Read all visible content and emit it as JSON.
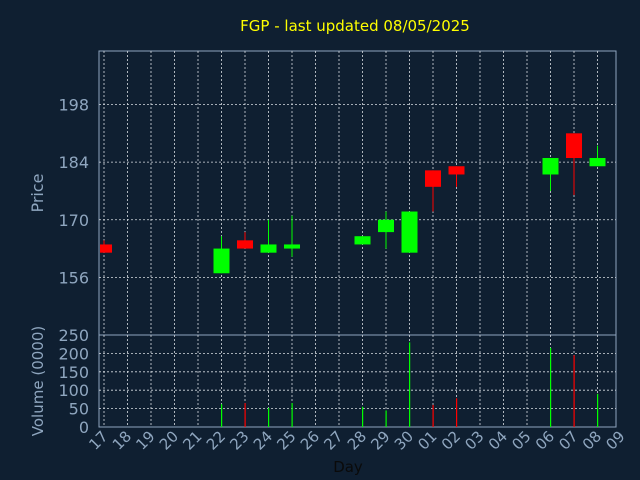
{
  "chart_data": {
    "type": "candlestick",
    "title": "FGP - last updated 08/05/2025",
    "xlabel": "Day",
    "x_ticks": [
      "17",
      "18",
      "19",
      "20",
      "21",
      "22",
      "23",
      "24",
      "25",
      "26",
      "27",
      "28",
      "29",
      "30",
      "01",
      "02",
      "03",
      "04",
      "05",
      "06",
      "07",
      "08",
      "09"
    ],
    "up_color": "#00ff00",
    "down_color": "#ff0000",
    "title_color": "#ffff00",
    "axis_label_color": "#8fa6bf",
    "price_panel": {
      "ylabel": "Price",
      "yticks": [
        156,
        170,
        184,
        198
      ],
      "ylim": [
        142,
        211
      ],
      "candles": [
        {
          "day": "17",
          "open": 164,
          "high": 165,
          "low": 162,
          "close": 162
        },
        {
          "day": "22",
          "open": 157,
          "high": 166,
          "low": 157,
          "close": 163
        },
        {
          "day": "23",
          "open": 165,
          "high": 167,
          "low": 163,
          "close": 163
        },
        {
          "day": "24",
          "open": 162,
          "high": 170,
          "low": 162,
          "close": 164
        },
        {
          "day": "25",
          "open": 163,
          "high": 171,
          "low": 161,
          "close": 164
        },
        {
          "day": "28",
          "open": 164,
          "high": 166,
          "low": 164,
          "close": 166
        },
        {
          "day": "29",
          "open": 167,
          "high": 172,
          "low": 163,
          "close": 170
        },
        {
          "day": "30",
          "open": 162,
          "high": 172,
          "low": 162,
          "close": 172
        },
        {
          "day": "01",
          "open": 182,
          "high": 182,
          "low": 172,
          "close": 178
        },
        {
          "day": "02",
          "open": 183,
          "high": 183,
          "low": 178,
          "close": 181
        },
        {
          "day": "06",
          "open": 181,
          "high": 185,
          "low": 177,
          "close": 185
        },
        {
          "day": "07",
          "open": 191,
          "high": 191,
          "low": 176,
          "close": 185
        },
        {
          "day": "08",
          "open": 183,
          "high": 188,
          "low": 183,
          "close": 185
        }
      ]
    },
    "volume_panel": {
      "ylabel": "Volume (0000)",
      "yticks": [
        0,
        50,
        100,
        150,
        200,
        250
      ],
      "ylim": [
        0,
        250
      ],
      "bars": [
        {
          "day": "22",
          "value": 62,
          "direction": "up"
        },
        {
          "day": "23",
          "value": 65,
          "direction": "down"
        },
        {
          "day": "24",
          "value": 52,
          "direction": "up"
        },
        {
          "day": "25",
          "value": 65,
          "direction": "up"
        },
        {
          "day": "28",
          "value": 55,
          "direction": "up"
        },
        {
          "day": "29",
          "value": 45,
          "direction": "up"
        },
        {
          "day": "30",
          "value": 230,
          "direction": "up"
        },
        {
          "day": "01",
          "value": 60,
          "direction": "down"
        },
        {
          "day": "02",
          "value": 78,
          "direction": "down"
        },
        {
          "day": "06",
          "value": 215,
          "direction": "up"
        },
        {
          "day": "07",
          "value": 195,
          "direction": "down"
        },
        {
          "day": "08",
          "value": 90,
          "direction": "up"
        }
      ]
    }
  }
}
